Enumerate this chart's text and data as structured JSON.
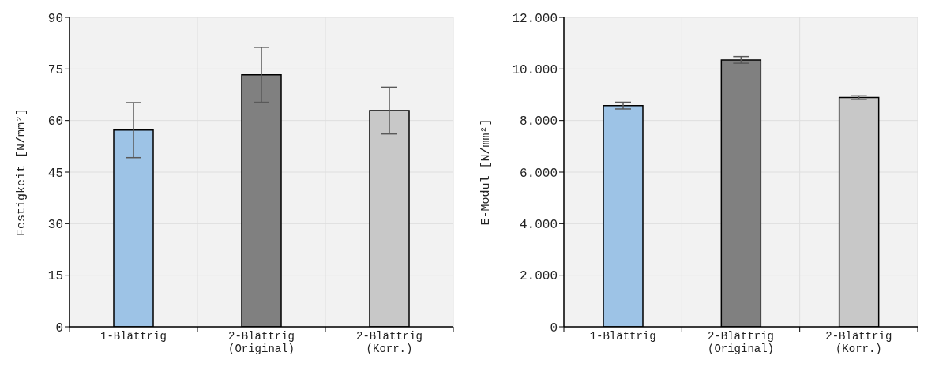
{
  "chart_data": [
    {
      "type": "bar",
      "categories": [
        "1-Blättrig",
        "2-Blättrig\n(Original)",
        "2-Blättrig\n(Korr.)"
      ],
      "values": [
        57.2,
        73.3,
        62.9
      ],
      "errors": [
        8,
        8,
        6.8
      ],
      "colors": [
        "#9dc3e6",
        "#808080",
        "#c8c8c8"
      ],
      "ylabel": "Festigkeit [N/mm²]",
      "ylim": [
        0,
        90
      ],
      "yticks": [
        0,
        15,
        30,
        45,
        60,
        75,
        90
      ],
      "grid": true
    },
    {
      "type": "bar",
      "categories": [
        "1-Blättrig",
        "2-Blättrig\n(Original)",
        "2-Blättrig\n(Korr.)"
      ],
      "values": [
        8580,
        10350,
        8890
      ],
      "errors": [
        130,
        130,
        70
      ],
      "colors": [
        "#9dc3e6",
        "#808080",
        "#c8c8c8"
      ],
      "ylabel": "E-Modul [N/mm²]",
      "ylim": [
        0,
        12000
      ],
      "yticks": [
        0,
        {
          "value": 2000,
          "label": "2.000"
        },
        {
          "value": 4000,
          "label": "4.000"
        },
        {
          "value": 6000,
          "label": "6.000"
        },
        {
          "value": 8000,
          "label": "8.000"
        },
        {
          "value": 10000,
          "label": "10.000"
        },
        {
          "value": 12000,
          "label": "12.000"
        }
      ],
      "grid": true
    }
  ]
}
